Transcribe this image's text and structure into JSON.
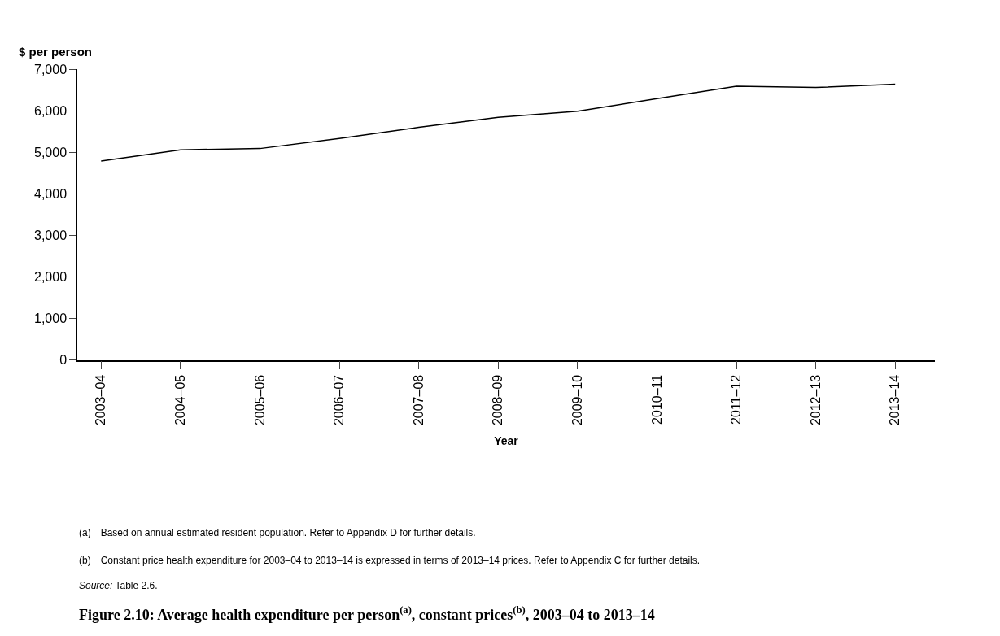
{
  "chart_data": {
    "type": "line",
    "title": "Figure 2.10: Average health expenditure per person$^{(a)}$, constant prices$^{(b)}$, 2003–04 to 2013–14",
    "xlabel": "Year",
    "ylabel": "$ per person",
    "categories": [
      "2003–04",
      "2004–05",
      "2005–06",
      "2006–07",
      "2007–08",
      "2008–09",
      "2009–10",
      "2010–11",
      "2011–12",
      "2012–13",
      "2013–14"
    ],
    "series": [
      {
        "color": "#000000",
        "values": [
          4790,
          5060,
          5090,
          5330,
          5600,
          5840,
          5990,
          6290,
          6590,
          6560,
          6640
        ]
      }
    ],
    "ylim": [
      0,
      7000
    ],
    "yticks": [
      {
        "value": 0,
        "label": "0"
      },
      {
        "value": 1000,
        "label": "1,000"
      },
      {
        "value": 2000,
        "label": "2,000"
      },
      {
        "value": 3000,
        "label": "3,000"
      },
      {
        "value": 4000,
        "label": "4,000"
      },
      {
        "value": 5000,
        "label": "5,000"
      },
      {
        "value": 6000,
        "label": "6,000"
      },
      {
        "value": 7000,
        "label": "7,000"
      }
    ],
    "legend": false,
    "marker": "none",
    "line_style": "solid",
    "annotations": [
      "(a) Based on annual estimated resident population. Refer to Appendix D for further details.",
      "(b) Constant price health expenditure for 2003–04 to 2013–14 is expressed in terms of 2013–14 prices. Refer to Appendix C for further details.",
      "Source: Table 2.6."
    ]
  }
}
